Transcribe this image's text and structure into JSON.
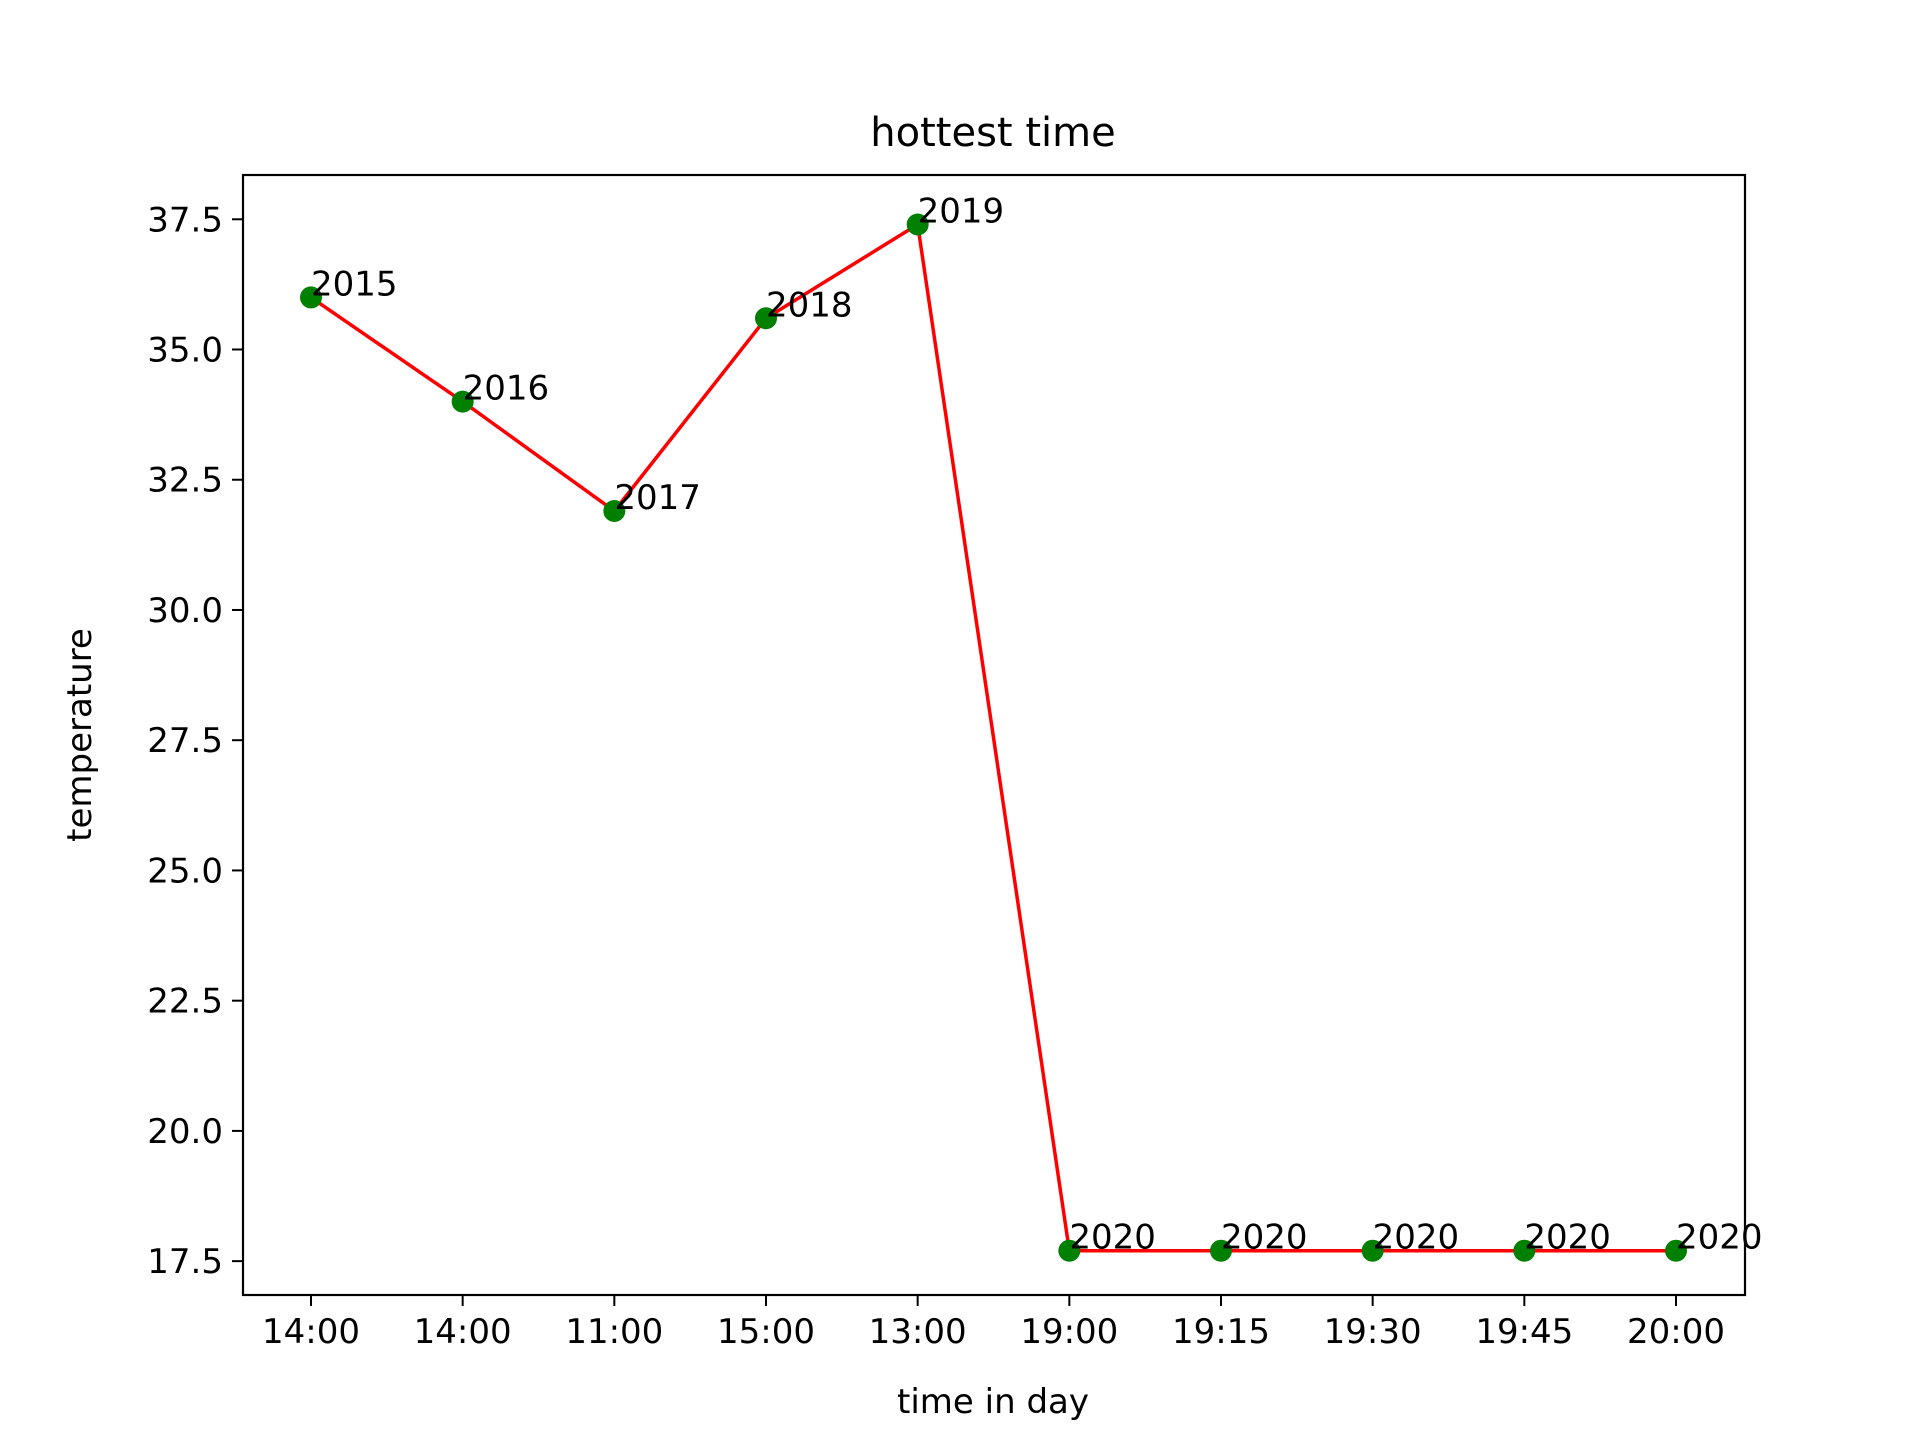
{
  "chart_data": {
    "type": "line",
    "title": "hottest time",
    "xlabel": "time in day",
    "ylabel": "temperature",
    "categories": [
      "14:00",
      "14:00",
      "11:00",
      "15:00",
      "13:00",
      "19:00",
      "19:15",
      "19:30",
      "19:45",
      "20:00"
    ],
    "values": [
      36.0,
      34.0,
      31.9,
      35.6,
      37.4,
      17.7,
      17.7,
      17.7,
      17.7,
      17.7
    ],
    "point_labels": [
      "2015",
      "2016",
      "2017",
      "2018",
      "2019",
      "2020",
      "2020",
      "2020",
      "2020",
      "2020"
    ],
    "yticks": [
      17.5,
      20.0,
      22.5,
      25.0,
      27.5,
      30.0,
      32.5,
      35.0,
      37.5
    ],
    "ytick_labels": [
      "17.5",
      "20.0",
      "22.5",
      "25.0",
      "27.5",
      "30.0",
      "32.5",
      "35.0",
      "37.5"
    ],
    "ylim": [
      16.85,
      38.35
    ],
    "grid": false,
    "line_color": "#ff0000",
    "marker_color": "#008000"
  }
}
